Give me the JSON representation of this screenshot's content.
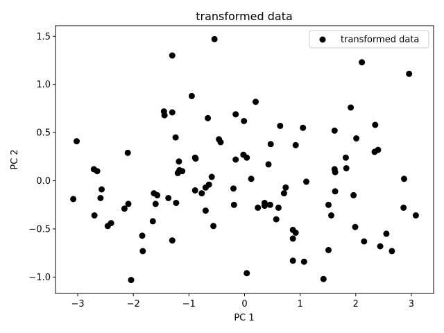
{
  "chart_data": {
    "type": "scatter",
    "title": "transformed data",
    "xlabel": "PC 1",
    "ylabel": "PC 2",
    "xlim": [
      -3.4,
      3.4
    ],
    "ylim": [
      -1.17,
      1.61
    ],
    "xticks": [
      -3,
      -2,
      -1,
      0,
      1,
      2,
      3
    ],
    "xtick_labels": [
      "−3",
      "−2",
      "−1",
      "0",
      "1",
      "2",
      "3"
    ],
    "yticks": [
      -1.0,
      -0.5,
      0.0,
      0.5,
      1.0,
      1.5
    ],
    "ytick_labels": [
      "−1.0",
      "−0.5",
      "0.0",
      "0.5",
      "1.0",
      "1.5"
    ],
    "grid": false,
    "legend": {
      "position": "top-right"
    },
    "series": [
      {
        "name": "transformed data",
        "color": "#000000",
        "points": [
          [
            -3.08,
            -0.19
          ],
          [
            -3.02,
            0.41
          ],
          [
            -2.71,
            0.12
          ],
          [
            -2.65,
            0.1
          ],
          [
            -2.7,
            -0.36
          ],
          [
            -2.59,
            -0.18
          ],
          [
            -2.57,
            -0.09
          ],
          [
            -2.46,
            -0.47
          ],
          [
            -2.4,
            -0.44
          ],
          [
            -2.16,
            -0.29
          ],
          [
            -2.09,
            -0.24
          ],
          [
            -2.1,
            0.29
          ],
          [
            -2.04,
            -1.03
          ],
          [
            -1.84,
            -0.57
          ],
          [
            -1.83,
            -0.73
          ],
          [
            -1.65,
            -0.42
          ],
          [
            -1.63,
            -0.13
          ],
          [
            -1.6,
            -0.24
          ],
          [
            -1.57,
            -0.15
          ],
          [
            -1.45,
            0.72
          ],
          [
            -1.44,
            0.68
          ],
          [
            -1.37,
            -0.18
          ],
          [
            -1.3,
            1.3
          ],
          [
            -1.3,
            0.71
          ],
          [
            -1.3,
            -0.62
          ],
          [
            -1.24,
            0.45
          ],
          [
            -1.23,
            -0.23
          ],
          [
            -1.2,
            0.08
          ],
          [
            -1.18,
            0.2
          ],
          [
            -1.17,
            0.11
          ],
          [
            -1.12,
            0.1
          ],
          [
            -0.95,
            0.88
          ],
          [
            -0.89,
            0.24
          ],
          [
            -0.88,
            0.23
          ],
          [
            -0.89,
            -0.1
          ],
          [
            -0.77,
            -0.13
          ],
          [
            -0.7,
            -0.07
          ],
          [
            -0.7,
            -0.31
          ],
          [
            -0.66,
            0.65
          ],
          [
            -0.64,
            -0.04
          ],
          [
            -0.59,
            0.04
          ],
          [
            -0.56,
            -0.47
          ],
          [
            -0.54,
            1.47
          ],
          [
            -0.46,
            0.43
          ],
          [
            -0.43,
            0.4
          ],
          [
            -0.2,
            -0.08
          ],
          [
            -0.19,
            -0.25
          ],
          [
            -0.16,
            0.69
          ],
          [
            -0.16,
            0.22
          ],
          [
            -0.02,
            0.27
          ],
          [
            -0.01,
            0.62
          ],
          [
            0.04,
            0.24
          ],
          [
            0.04,
            -0.96
          ],
          [
            0.12,
            0.02
          ],
          [
            0.2,
            0.82
          ],
          [
            0.24,
            -0.28
          ],
          [
            0.36,
            -0.23
          ],
          [
            0.36,
            -0.26
          ],
          [
            0.43,
            0.17
          ],
          [
            0.46,
            -0.25
          ],
          [
            0.47,
            0.38
          ],
          [
            0.57,
            -0.4
          ],
          [
            0.61,
            -0.28
          ],
          [
            0.64,
            0.57
          ],
          [
            0.71,
            -0.13
          ],
          [
            0.74,
            -0.07
          ],
          [
            0.87,
            -0.51
          ],
          [
            0.87,
            -0.6
          ],
          [
            0.87,
            -0.83
          ],
          [
            0.92,
            -0.54
          ],
          [
            0.92,
            0.37
          ],
          [
            1.05,
            0.55
          ],
          [
            1.07,
            -0.84
          ],
          [
            1.11,
            -0.01
          ],
          [
            1.42,
            -1.02
          ],
          [
            1.51,
            -0.25
          ],
          [
            1.51,
            -0.72
          ],
          [
            1.56,
            -0.36
          ],
          [
            1.62,
            0.52
          ],
          [
            1.62,
            0.12
          ],
          [
            1.63,
            0.09
          ],
          [
            1.63,
            -0.11
          ],
          [
            1.82,
            0.24
          ],
          [
            1.83,
            0.13
          ],
          [
            1.91,
            0.76
          ],
          [
            1.96,
            -0.15
          ],
          [
            1.99,
            -0.48
          ],
          [
            2.01,
            0.44
          ],
          [
            2.11,
            1.23
          ],
          [
            2.15,
            -0.63
          ],
          [
            2.34,
            0.3
          ],
          [
            2.35,
            0.58
          ],
          [
            2.4,
            0.32
          ],
          [
            2.44,
            -0.68
          ],
          [
            2.55,
            -0.55
          ],
          [
            2.65,
            -0.73
          ],
          [
            2.86,
            -0.28
          ],
          [
            2.87,
            0.02
          ],
          [
            2.96,
            1.11
          ],
          [
            3.08,
            -0.36
          ]
        ]
      }
    ]
  }
}
